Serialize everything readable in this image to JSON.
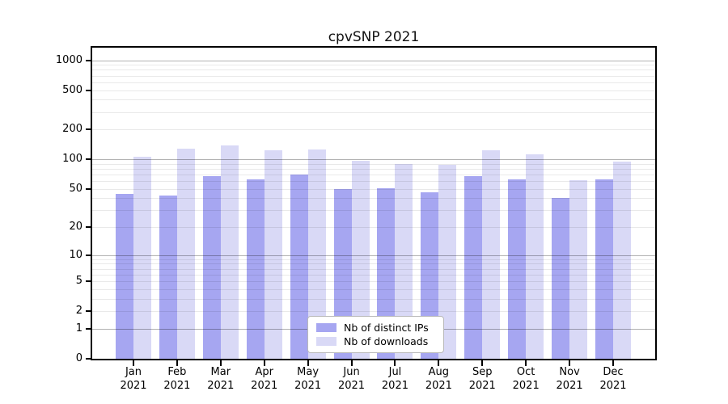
{
  "chart_data": {
    "type": "bar",
    "title": "cpvSNP 2021",
    "categories": [
      "Jan",
      "Feb",
      "Mar",
      "Apr",
      "May",
      "Jun",
      "Jul",
      "Aug",
      "Sep",
      "Oct",
      "Nov",
      "Dec"
    ],
    "x_tick_second_line": "2021",
    "series": [
      {
        "name": "Nb of distinct IPs",
        "color": "#a6a6f1",
        "values": [
          44,
          43,
          67,
          63,
          70,
          50,
          51,
          46,
          67,
          62,
          40,
          62
        ]
      },
      {
        "name": "Nb of downloads",
        "color": "#d9d9f6",
        "values": [
          106,
          128,
          137,
          123,
          125,
          96,
          90,
          88,
          123,
          113,
          61,
          95
        ]
      }
    ],
    "yticks": [
      0,
      1,
      2,
      5,
      10,
      20,
      50,
      100,
      200,
      500,
      1000
    ],
    "yscale": "log1p",
    "ylim": [
      0,
      1400
    ],
    "grid": "horizontal; major lines at powers of 10, minor at 2-9 per decade",
    "legend_position": "lower center, inside plot",
    "colors": {
      "major_grid": "#b3b3b3",
      "minor_grid": "#ebebeb",
      "axis": "#000000",
      "background": "#ffffff"
    }
  }
}
